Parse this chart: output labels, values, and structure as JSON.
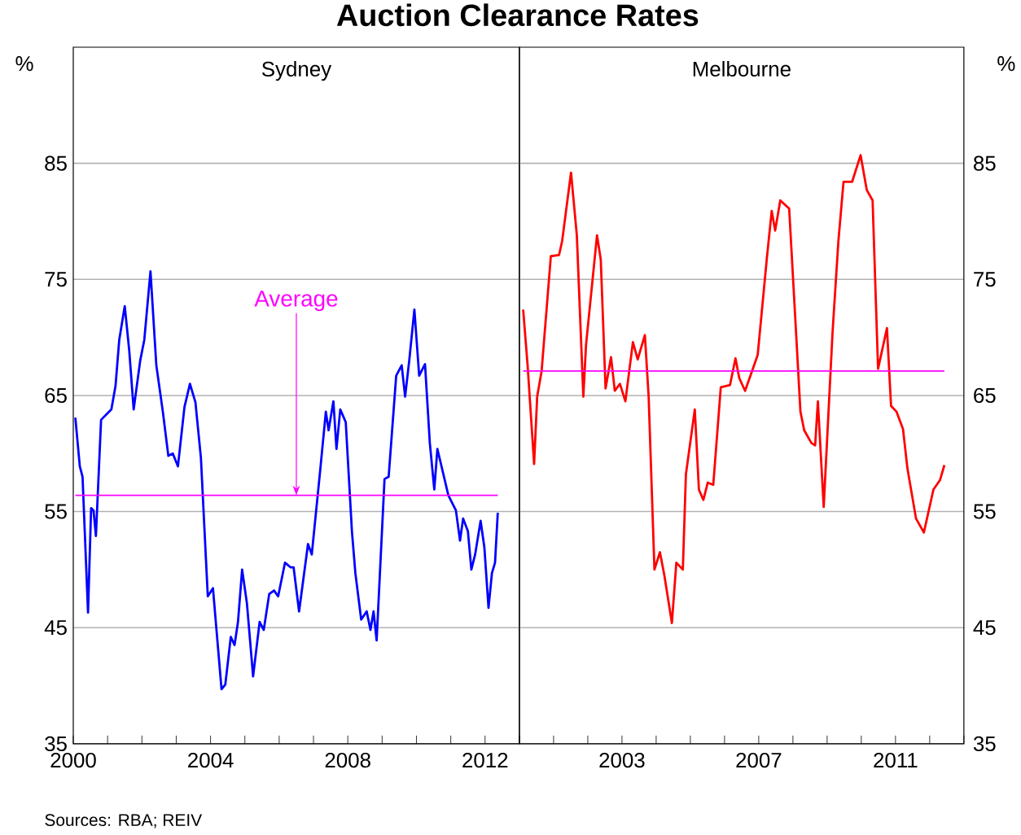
{
  "chart_data": [
    {
      "type": "line",
      "title": "Sydney",
      "ylabel": "%",
      "x": [
        2000.06,
        2000.19,
        2000.27,
        2000.43,
        2000.52,
        2000.59,
        2000.66,
        2000.81,
        2001.11,
        2001.23,
        2001.34,
        2001.5,
        2001.63,
        2001.76,
        2001.95,
        2002.07,
        2002.25,
        2002.42,
        2002.61,
        2002.77,
        2002.9,
        2003.05,
        2003.24,
        2003.4,
        2003.56,
        2003.72,
        2003.92,
        2004.07,
        2004.32,
        2004.43,
        2004.59,
        2004.7,
        2004.8,
        2004.92,
        2005.06,
        2005.24,
        2005.43,
        2005.55,
        2005.71,
        2005.85,
        2005.97,
        2006.17,
        2006.33,
        2006.42,
        2006.58,
        2006.84,
        2006.95,
        2007.2,
        2007.36,
        2007.44,
        2007.58,
        2007.67,
        2007.78,
        2007.94,
        2008.12,
        2008.22,
        2008.39,
        2008.55,
        2008.66,
        2008.75,
        2008.84,
        2009.07,
        2009.19,
        2009.41,
        2009.57,
        2009.67,
        2009.79,
        2009.94,
        2010.08,
        2010.25,
        2010.39,
        2010.52,
        2010.61,
        2010.93,
        2011.15,
        2011.27,
        2011.36,
        2011.5,
        2011.6,
        2011.71,
        2011.87,
        2011.98,
        2012.1,
        2012.2,
        2012.29,
        2012.37
      ],
      "series": [
        {
          "color": "#0000ff",
          "values": [
            63.1,
            58.9,
            58.0,
            46.3,
            55.3,
            55.1,
            52.9,
            62.9,
            63.8,
            65.8,
            69.8,
            72.7,
            68.9,
            63.8,
            68.0,
            69.8,
            75.7,
            67.6,
            63.6,
            59.8,
            60.0,
            58.9,
            64.0,
            66.0,
            64.4,
            59.6,
            47.7,
            48.4,
            39.7,
            40.1,
            44.2,
            43.5,
            45.5,
            50.0,
            47.1,
            40.8,
            45.5,
            44.8,
            47.9,
            48.2,
            47.7,
            50.6,
            50.2,
            50.2,
            46.4,
            52.2,
            51.3,
            58.7,
            63.6,
            62.0,
            64.5,
            60.4,
            63.8,
            62.7,
            53.3,
            49.7,
            45.7,
            46.4,
            44.8,
            46.4,
            43.9,
            57.8,
            58.0,
            66.7,
            67.6,
            64.9,
            68.0,
            72.4,
            66.7,
            67.7,
            60.9,
            56.9,
            60.4,
            56.4,
            55.1,
            52.5,
            54.4,
            53.3,
            50.0,
            51.3,
            54.2,
            51.9,
            46.7,
            49.7,
            50.6,
            54.9
          ]
        }
      ],
      "xlim": [
        2000,
        2013
      ],
      "xticks": [
        {
          "value": 2000,
          "label": "2000"
        },
        {
          "value": 2001,
          "label": null
        },
        {
          "value": 2002,
          "label": null
        },
        {
          "value": 2003,
          "label": null
        },
        {
          "value": 2004,
          "label": "2004"
        },
        {
          "value": 2005,
          "label": null
        },
        {
          "value": 2006,
          "label": null
        },
        {
          "value": 2007,
          "label": null
        },
        {
          "value": 2008,
          "label": "2008"
        },
        {
          "value": 2009,
          "label": null
        },
        {
          "value": 2010,
          "label": null
        },
        {
          "value": 2011,
          "label": null
        },
        {
          "value": 2012,
          "label": "2012"
        },
        {
          "value": 2013,
          "label": null
        }
      ],
      "ylim": [
        35,
        95
      ],
      "yticks": [
        35,
        45,
        55,
        65,
        75,
        85
      ],
      "grid": "y",
      "ref_lines": [
        {
          "axis": "y",
          "value": 56.4,
          "color": "#ff00ff"
        }
      ],
      "annotations": [
        {
          "text": "Average",
          "x": 2006.5,
          "y": 56.4
        },
        "Auction Clearance Rates",
        "Sources: RBA; REIV"
      ]
    },
    {
      "type": "line",
      "title": "Melbourne",
      "y2label": "%",
      "x": [
        2000.11,
        2000.24,
        2000.43,
        2000.52,
        2000.65,
        2000.92,
        2001.16,
        2001.25,
        2001.51,
        2001.68,
        2001.87,
        2001.95,
        2002.27,
        2002.38,
        2002.52,
        2002.68,
        2002.79,
        2002.94,
        2003.1,
        2003.32,
        2003.46,
        2003.67,
        2003.78,
        2003.95,
        2004.11,
        2004.24,
        2004.46,
        2004.59,
        2004.78,
        2004.87,
        2005.13,
        2005.25,
        2005.38,
        2005.51,
        2005.67,
        2005.89,
        2006.16,
        2006.32,
        2006.43,
        2006.6,
        2006.84,
        2006.97,
        2007.24,
        2007.38,
        2007.48,
        2007.63,
        2007.89,
        2008.22,
        2008.33,
        2008.54,
        2008.65,
        2008.73,
        2008.9,
        2009.16,
        2009.33,
        2009.48,
        2009.73,
        2009.98,
        2010.16,
        2010.33,
        2010.49,
        2010.75,
        2010.87,
        2011.03,
        2011.22,
        2011.35,
        2011.6,
        2011.83,
        2012.11,
        2012.3,
        2012.43
      ],
      "series": [
        {
          "color": "#ff0000",
          "axis": "y2",
          "values": [
            72.4,
            67.6,
            59.1,
            64.9,
            67.1,
            77.0,
            77.1,
            78.3,
            84.2,
            78.8,
            64.9,
            69.4,
            78.8,
            76.7,
            65.6,
            68.3,
            65.4,
            66.0,
            64.5,
            69.6,
            68.1,
            70.2,
            64.9,
            50.0,
            51.5,
            49.5,
            45.4,
            50.6,
            50.0,
            58.2,
            63.8,
            56.9,
            56.0,
            57.5,
            57.3,
            65.7,
            65.9,
            68.2,
            66.5,
            65.4,
            67.4,
            68.5,
            76.9,
            80.9,
            79.2,
            81.8,
            81.1,
            63.6,
            62.0,
            60.9,
            60.7,
            64.5,
            55.4,
            70.5,
            78.3,
            83.4,
            83.4,
            85.7,
            82.7,
            81.8,
            67.3,
            70.8,
            64.1,
            63.6,
            62.1,
            58.7,
            54.4,
            53.2,
            56.9,
            57.7,
            59.0
          ]
        }
      ],
      "xlim": [
        2000,
        2013
      ],
      "xticks": [
        {
          "value": 2000,
          "label": null
        },
        {
          "value": 2001,
          "label": null
        },
        {
          "value": 2002,
          "label": null
        },
        {
          "value": 2003,
          "label": "2003"
        },
        {
          "value": 2004,
          "label": null
        },
        {
          "value": 2005,
          "label": null
        },
        {
          "value": 2006,
          "label": null
        },
        {
          "value": 2007,
          "label": "2007"
        },
        {
          "value": 2008,
          "label": null
        },
        {
          "value": 2009,
          "label": null
        },
        {
          "value": 2010,
          "label": null
        },
        {
          "value": 2011,
          "label": "2011"
        },
        {
          "value": 2012,
          "label": null
        },
        {
          "value": 2013,
          "label": null
        }
      ],
      "y2lim": [
        35,
        95
      ],
      "y2ticks": [
        35,
        45,
        55,
        65,
        75,
        85
      ],
      "grid": "y",
      "ref_lines": [
        {
          "axis": "y2",
          "value": 67.1,
          "color": "#ff00ff"
        }
      ]
    }
  ]
}
